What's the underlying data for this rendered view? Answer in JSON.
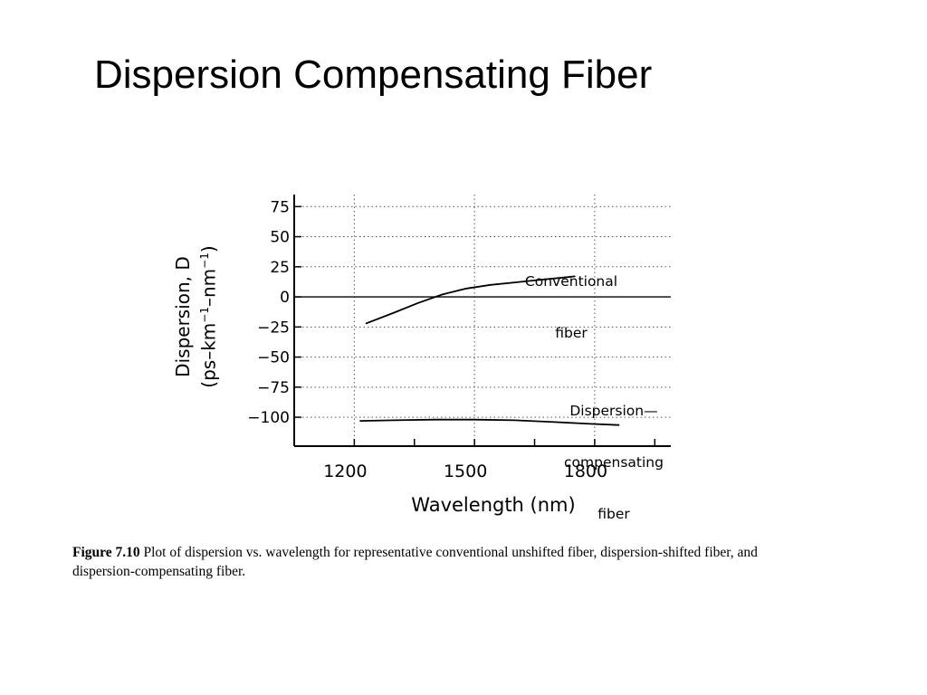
{
  "slide": {
    "title": "Dispersion Compensating Fiber"
  },
  "figure": {
    "caption_label": "Figure 7.10",
    "caption_text": " Plot of dispersion vs. wavelength for representative conventional unshifted fiber, dispersion-shifted fiber, and dispersion-compensating fiber."
  },
  "chart_data": {
    "type": "line",
    "title": "",
    "xlabel": "Wavelength (nm)",
    "ylabel_line1": "Dispersion, D",
    "ylabel_line2_prefix": "(ps–km",
    "ylabel_exp1": "−1",
    "ylabel_mid": "–nm",
    "ylabel_exp2": "−1",
    "ylabel_suffix": ")",
    "xlim": [
      1050,
      1990
    ],
    "ylim": [
      -124,
      85
    ],
    "x_ticks": [
      1200,
      1350,
      1500,
      1650,
      1800,
      1950
    ],
    "x_tick_labels": [
      "1200",
      "",
      "1500",
      "",
      "1800",
      ""
    ],
    "y_ticks": [
      75,
      50,
      25,
      0,
      -25,
      -50,
      -75,
      -100
    ],
    "y_tick_labels": [
      "75",
      "50",
      "25",
      "0",
      "−25",
      "−50",
      "−75",
      "−100"
    ],
    "grid": true,
    "zero_line": true,
    "series": [
      {
        "name": "Conventional fiber",
        "annotation_lines": [
          "Conventional",
          "fiber"
        ],
        "x": [
          1230,
          1300,
          1360,
          1420,
          1480,
          1540,
          1600,
          1660,
          1720,
          1750
        ],
        "y": [
          -22,
          -13,
          -5,
          2,
          7,
          10,
          12,
          14,
          16,
          17
        ]
      },
      {
        "name": "Dispersion–compensating fiber",
        "annotation_lines": [
          "Dispersion—",
          "compensating",
          "fiber"
        ],
        "x": [
          1215,
          1300,
          1400,
          1500,
          1600,
          1700,
          1790,
          1860
        ],
        "y": [
          -103,
          -102.5,
          -102,
          -102,
          -102.5,
          -104,
          -105.5,
          -106.5
        ]
      }
    ]
  }
}
